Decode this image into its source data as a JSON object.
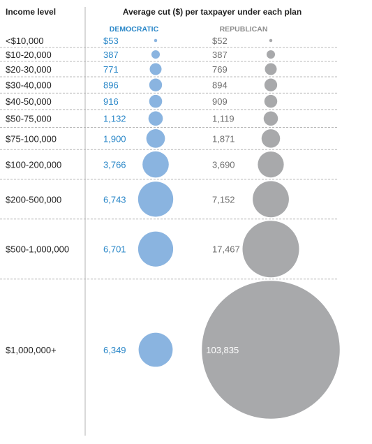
{
  "chart_data": {
    "type": "bubble-table",
    "title": "Average cut ($) per taxpayer under each plan",
    "row_header": "Income level",
    "colors": {
      "democratic": "#8ab4e0",
      "republican": "#a8a9ab",
      "democratic_text": "#2a87c8"
    },
    "series": [
      {
        "name": "DEMOCRATIC",
        "labels": [
          "$53",
          "387",
          "771",
          "896",
          "916",
          "1,132",
          "1,900",
          "3,766",
          "6,743",
          "6,701",
          "6,349"
        ],
        "values": [
          53,
          387,
          771,
          896,
          916,
          1132,
          1900,
          3766,
          6743,
          6701,
          6349
        ]
      },
      {
        "name": "REPUBLICAN",
        "labels": [
          "$52",
          "387",
          "769",
          "894",
          "909",
          "1,119",
          "1,871",
          "3,690",
          "7,152",
          "17,467",
          "103,835"
        ],
        "values": [
          52,
          387,
          769,
          894,
          909,
          1119,
          1871,
          3690,
          7152,
          17467,
          103835
        ]
      }
    ],
    "categories": [
      "<$10,000",
      "$10-20,000",
      "$20-30,000",
      "$30-40,000",
      "$40-50,000",
      "$50-75,000",
      "$75-100,000",
      "$100-200,000",
      "$200-500,000",
      "$500-1,000,000",
      "$1,000,000+"
    ]
  }
}
